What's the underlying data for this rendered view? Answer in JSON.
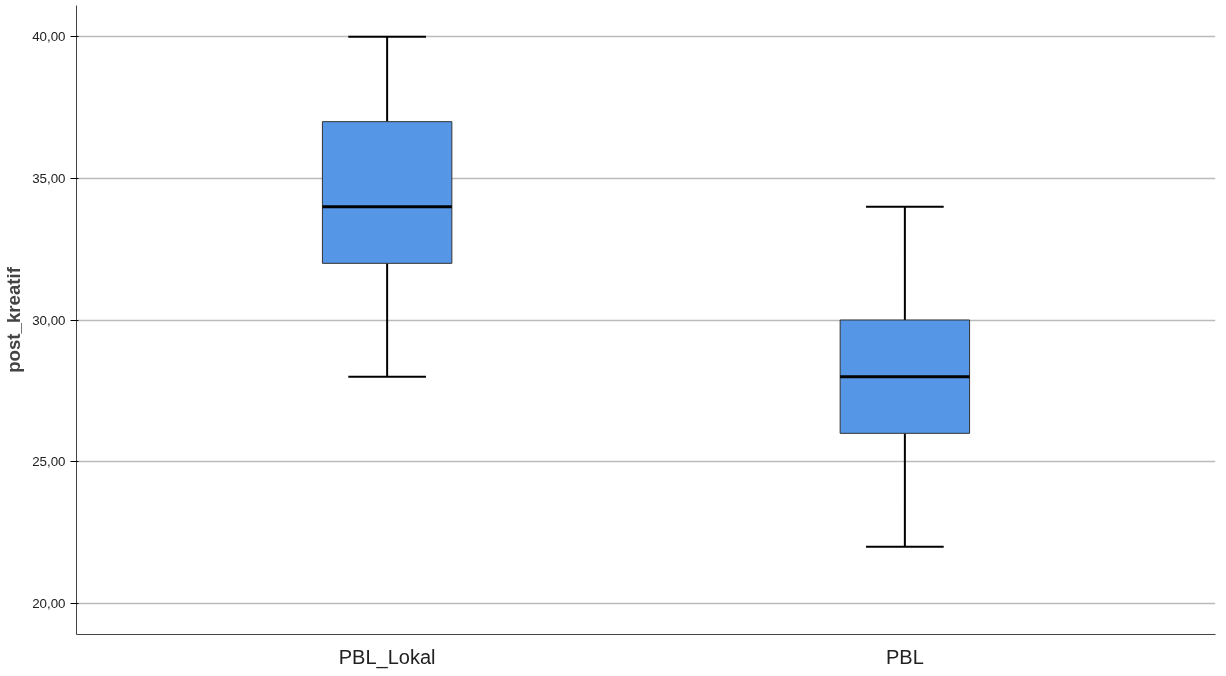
{
  "chart_data": {
    "type": "box",
    "ylabel": "post_kreatif",
    "categories": [
      "PBL_Lokal",
      "PBL"
    ],
    "boxes": [
      {
        "low": 28,
        "q1": 32,
        "median": 34,
        "q3": 37,
        "high": 40
      },
      {
        "low": 22,
        "q1": 26,
        "median": 28,
        "q3": 30,
        "high": 34
      }
    ],
    "color": "#5596e6",
    "ylim": [
      18.9,
      41.1
    ],
    "yticks": [
      {
        "value": 20,
        "label": "20,00"
      },
      {
        "value": 25,
        "label": "25,00"
      },
      {
        "value": 30,
        "label": "30,00"
      },
      {
        "value": 35,
        "label": "35,00"
      },
      {
        "value": 40,
        "label": "40,00"
      }
    ],
    "grid": "y"
  }
}
